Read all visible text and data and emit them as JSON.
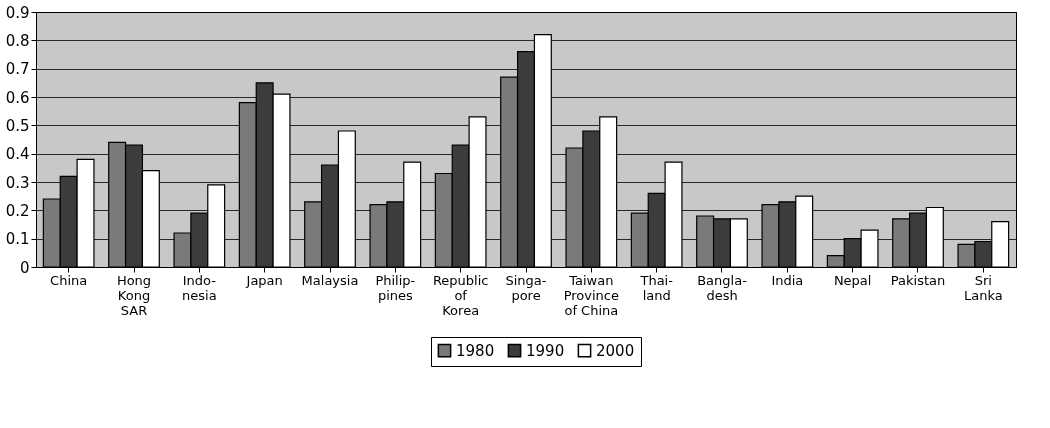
{
  "chart_data": {
    "type": "bar",
    "categories": [
      "China",
      "Hong\nKong\nSAR",
      "Indo-\nnesia",
      "Japan",
      "Malaysia",
      "Philip-\npines",
      "Republic\nof\nKorea",
      "Singa-\npore",
      "Taiwan\nProvince\nof China",
      "Thai-\nland",
      "Bangla-\ndesh",
      "India",
      "Nepal",
      "Pakistan",
      "Sri\nLanka"
    ],
    "series": [
      {
        "name": "1980",
        "color": "#7a7a7a",
        "values": [
          0.24,
          0.44,
          0.12,
          0.58,
          0.23,
          0.22,
          0.33,
          0.67,
          0.42,
          0.19,
          0.18,
          0.22,
          0.04,
          0.17,
          0.08
        ]
      },
      {
        "name": "1990",
        "color": "#3c3c3c",
        "values": [
          0.32,
          0.43,
          0.19,
          0.65,
          0.36,
          0.23,
          0.43,
          0.76,
          0.48,
          0.26,
          0.17,
          0.23,
          0.1,
          0.19,
          0.09
        ]
      },
      {
        "name": "2000",
        "color": "#ffffff",
        "values": [
          0.38,
          0.34,
          0.29,
          0.61,
          0.48,
          0.37,
          0.53,
          0.82,
          0.53,
          0.37,
          0.17,
          0.25,
          0.13,
          0.21,
          0.16
        ]
      }
    ],
    "ylim": [
      0,
      0.9
    ],
    "yticks": [
      0,
      0.1,
      0.2,
      0.3,
      0.4,
      0.5,
      0.6,
      0.7,
      0.8,
      0.9
    ],
    "grid": "y",
    "legend": "bottom"
  }
}
